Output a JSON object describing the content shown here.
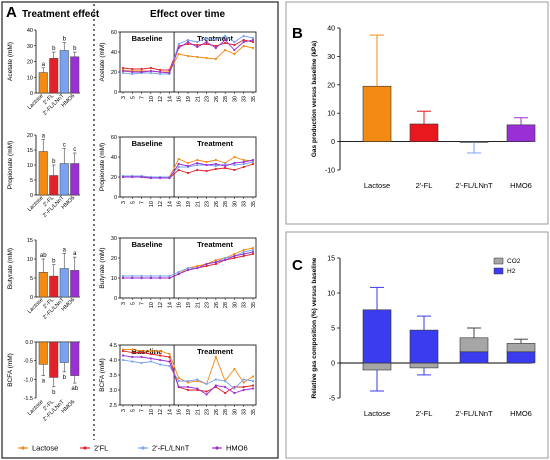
{
  "panels": {
    "A": "A",
    "B": "B",
    "C": "C"
  },
  "panelA": {
    "section_left": "Treatment effect",
    "section_right": "Effect over time",
    "baseline_label": "Baseline",
    "treatment_label": "Treatment",
    "legend": [
      "Lactose",
      "2'FL",
      "2'-FL/LNnT",
      "HMO6"
    ],
    "colors": [
      "#f28a14",
      "#e0222a",
      "#7aa2f0",
      "#9a2fd6"
    ]
  },
  "chart_data": [
    {
      "type": "bar",
      "ylabel": "Acetate (mM)",
      "categories": [
        "Lactose",
        "2'-FL",
        "2'-FL/LNnT",
        "HMO6"
      ],
      "values": [
        13,
        22,
        27,
        23
      ],
      "errors": [
        3,
        4,
        5,
        3
      ],
      "ylim": [
        0,
        40
      ],
      "yticks": [
        "0",
        "10",
        "20",
        "30",
        "40"
      ],
      "letters": [
        "a",
        "b",
        "b",
        "b"
      ]
    },
    {
      "type": "bar",
      "ylabel": "Propionate (mM)",
      "categories": [
        "Lactose",
        "2'-FL",
        "2'-FL/LNnT",
        "HMO6"
      ],
      "values": [
        14.5,
        6.5,
        10.5,
        10.5
      ],
      "errors": [
        4,
        3.5,
        5,
        3.5
      ],
      "ylim": [
        0,
        20
      ],
      "yticks": [
        "0",
        "5",
        "10",
        "15",
        "20"
      ],
      "letters": [
        "a",
        "b",
        "c",
        "c"
      ]
    },
    {
      "type": "bar",
      "ylabel": "Butyrate (mM)",
      "categories": [
        "Lactose",
        "2'-FL",
        "2'-FL/LNnT",
        "HMO6"
      ],
      "values": [
        6.5,
        5.5,
        7.5,
        7
      ],
      "errors": [
        3.5,
        3,
        4,
        3.5
      ],
      "ylim": [
        0,
        15
      ],
      "yticks": [
        "0",
        "5",
        "10",
        "15"
      ],
      "letters": [
        "ab",
        "b",
        "a",
        "a"
      ]
    },
    {
      "type": "bar",
      "ylabel": "BCFA (mM)",
      "categories": [
        "Lactose",
        "2'-FL",
        "2'-FL/LNnT",
        "HMO6"
      ],
      "values": [
        -0.6,
        -0.95,
        -0.55,
        -0.9
      ],
      "errors": [
        0.3,
        0.25,
        0.25,
        0.2
      ],
      "ylim": [
        -1.5,
        0
      ],
      "yticks": [
        "-1.5",
        "-1.0",
        "-0.5",
        "0.0"
      ],
      "letters": [
        "a",
        "b",
        "b",
        "ab"
      ]
    },
    {
      "type": "line",
      "ylabel": "Acetate (mM)",
      "x": [
        3,
        5,
        7,
        10,
        12,
        14,
        16,
        19,
        21,
        23,
        26,
        28,
        30,
        33,
        35
      ],
      "xticks": [
        "3",
        "5",
        "7",
        "10",
        "12",
        "14",
        "16",
        "19",
        "21",
        "23",
        "26",
        "28",
        "30",
        "33",
        "35"
      ],
      "ylim": [
        0,
        60
      ],
      "yticks": [
        "0",
        "20",
        "40",
        "60"
      ],
      "series": [
        {
          "values": [
            22,
            21,
            21,
            21,
            20,
            20,
            38,
            36,
            35,
            34,
            33,
            42,
            38,
            46,
            44
          ]
        },
        {
          "values": [
            24,
            23,
            23,
            24,
            22,
            22,
            46,
            48,
            47,
            48,
            46,
            49,
            47,
            52,
            50
          ]
        },
        {
          "values": [
            19,
            18,
            19,
            19,
            18,
            18,
            48,
            52,
            50,
            54,
            52,
            56,
            50,
            56,
            54
          ]
        },
        {
          "values": [
            21,
            20,
            20,
            21,
            20,
            19,
            44,
            50,
            45,
            50,
            44,
            52,
            42,
            50,
            52
          ]
        }
      ]
    },
    {
      "type": "line",
      "ylabel": "Propionate (mM)",
      "x": [
        3,
        5,
        7,
        10,
        12,
        14,
        16,
        19,
        21,
        23,
        26,
        28,
        30,
        33,
        35
      ],
      "xticks": [
        "3",
        "5",
        "7",
        "10",
        "12",
        "14",
        "16",
        "19",
        "21",
        "23",
        "26",
        "28",
        "30",
        "33",
        "35"
      ],
      "ylim": [
        0,
        60
      ],
      "yticks": [
        "0",
        "20",
        "40",
        "60"
      ],
      "series": [
        {
          "values": [
            21,
            21,
            20,
            20,
            20,
            20,
            38,
            34,
            37,
            35,
            37,
            34,
            40,
            37,
            36
          ]
        },
        {
          "values": [
            20,
            20,
            20,
            19,
            19,
            19,
            27,
            24,
            27,
            26,
            28,
            29,
            27,
            30,
            33
          ]
        },
        {
          "values": [
            21,
            21,
            21,
            20,
            20,
            20,
            30,
            30,
            32,
            32,
            31,
            33,
            32,
            33,
            35
          ]
        },
        {
          "values": [
            20,
            20,
            20,
            19,
            19,
            19,
            33,
            31,
            34,
            32,
            33,
            31,
            34,
            35,
            37
          ]
        }
      ]
    },
    {
      "type": "line",
      "ylabel": "Butyrate (mM)",
      "x": [
        3,
        5,
        7,
        10,
        12,
        14,
        16,
        19,
        21,
        23,
        26,
        28,
        30,
        33,
        35
      ],
      "xticks": [
        "3",
        "5",
        "7",
        "10",
        "12",
        "14",
        "16",
        "19",
        "21",
        "23",
        "26",
        "28",
        "30",
        "33",
        "35"
      ],
      "ylim": [
        0,
        30
      ],
      "yticks": [
        "0",
        "10",
        "20",
        "30"
      ],
      "series": [
        {
          "values": [
            10,
            10,
            10,
            10,
            10,
            10,
            12,
            15,
            16,
            17,
            19,
            20,
            22,
            24,
            25
          ]
        },
        {
          "values": [
            10,
            10,
            10,
            10,
            10,
            10,
            12,
            14,
            15,
            16,
            17,
            19,
            20,
            21,
            22
          ]
        },
        {
          "values": [
            11,
            11,
            11,
            11,
            11,
            11,
            13,
            15,
            15,
            17,
            18,
            20,
            21,
            23,
            24
          ]
        },
        {
          "values": [
            10,
            10,
            10,
            10,
            10,
            10,
            12,
            14,
            15,
            17,
            18,
            19,
            21,
            22,
            23
          ]
        }
      ]
    },
    {
      "type": "line",
      "ylabel": "BCFA (mM)",
      "x": [
        3,
        5,
        7,
        10,
        12,
        14,
        16,
        19,
        21,
        23,
        26,
        28,
        30,
        33,
        35
      ],
      "xticks": [
        "3",
        "5",
        "7",
        "10",
        "12",
        "14",
        "16",
        "19",
        "21",
        "23",
        "26",
        "28",
        "30",
        "33",
        "35"
      ],
      "ylim": [
        2.5,
        4.5
      ],
      "yticks": [
        "2.5",
        "3.0",
        "3.5",
        "4.0",
        "4.5"
      ],
      "series": [
        {
          "values": [
            4.35,
            4.35,
            4.3,
            4.3,
            4.3,
            4.2,
            3.4,
            3.25,
            3.3,
            3.2,
            4.1,
            3.3,
            3.7,
            3.25,
            3.45
          ]
        },
        {
          "values": [
            4.3,
            4.25,
            4.25,
            4.2,
            4.15,
            4.1,
            3.1,
            3.0,
            3.0,
            2.95,
            3.1,
            2.9,
            3.1,
            3.1,
            3.15
          ]
        },
        {
          "values": [
            4.0,
            3.95,
            3.9,
            3.95,
            3.85,
            3.8,
            3.3,
            3.3,
            3.35,
            3.2,
            3.35,
            3.3,
            3.05,
            3.35,
            3.3
          ]
        },
        {
          "values": [
            4.15,
            4.1,
            4.1,
            4.05,
            4.0,
            3.95,
            3.1,
            3.1,
            3.05,
            2.85,
            3.15,
            3.1,
            2.9,
            3.0,
            3.05
          ]
        }
      ]
    },
    {
      "type": "bar",
      "ylabel": "Gas production versus baseline (kPa)",
      "categories": [
        "Lactose",
        "2'-FL",
        "2'-FL/LNnT",
        "HMO6"
      ],
      "values": [
        19.5,
        6.2,
        -0.2,
        5.9
      ],
      "errors": [
        18,
        4.5,
        3.8,
        2.5
      ],
      "colors": [
        "#f28a14",
        "#e8181e",
        "#7aa2f0",
        "#9a2fd6"
      ],
      "ylim": [
        -10,
        40
      ],
      "yticks": [
        "-10",
        "0",
        "10",
        "20",
        "30",
        "40"
      ]
    },
    {
      "type": "bar",
      "stacked": true,
      "ylabel": "Relative gas composition (%) versus baseline",
      "categories": [
        "Lactose",
        "2'-FL",
        "2'-FL/LNnT",
        "HMO6"
      ],
      "series": [
        {
          "name": "CO2",
          "values": [
            -1,
            -0.7,
            2,
            1.2
          ],
          "color": "#a6a6a6"
        },
        {
          "name": "H2",
          "values": [
            7.6,
            4.7,
            1.6,
            1.6
          ],
          "color": "#3b3bf0"
        }
      ],
      "errors": [
        3.2,
        2.0,
        1.4,
        0.6
      ],
      "neg_errors": [
        3.0,
        1.0,
        0,
        0
      ],
      "ylim": [
        -5,
        15
      ],
      "yticks": [
        "-5",
        "0",
        "5",
        "10",
        "15"
      ]
    }
  ]
}
